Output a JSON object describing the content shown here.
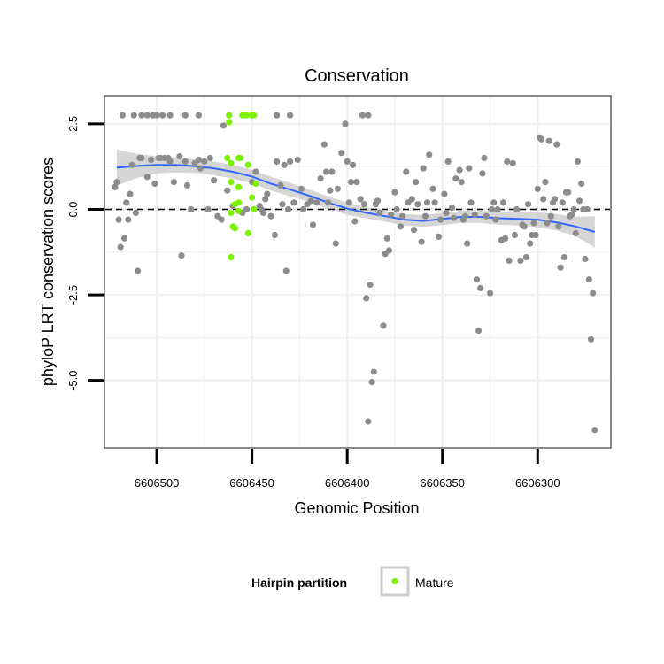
{
  "chart_data": {
    "type": "scatter",
    "title": "Conservation",
    "xlabel": "Genomic Position",
    "ylabel": "phyloP LRT conservation scores",
    "x_reversed": true,
    "xlim": [
      6606262,
      6606527
    ],
    "ylim": [
      -6.95,
      3.3
    ],
    "x_ticks": [
      6606500,
      6606450,
      6606400,
      6606350,
      6606300
    ],
    "x_tick_labels": [
      "6606500",
      "6606450",
      "6606400",
      "6606350",
      "6606300"
    ],
    "y_ticks": [
      2.5,
      0.0,
      -2.5,
      -5.0
    ],
    "y_tick_labels": [
      "2.5",
      "0.0",
      "-2.5",
      "-5.0"
    ],
    "grid": true,
    "reference_line": {
      "y": 0.0,
      "style": "dashed",
      "color": "#000000"
    },
    "legend": {
      "title": "Hairpin partition",
      "position": "bottom",
      "entries": [
        {
          "label": "Mature",
          "color": "#7cf200"
        }
      ]
    },
    "colors": {
      "points": "#8c8c8c",
      "mature": "#7cf200",
      "smooth": "#3366ff",
      "band": "#c8c8c8",
      "frame": "#888888",
      "grid": "#f0f0f0"
    },
    "series": [
      {
        "name": "",
        "color": "#8c8c8c",
        "points": [
          [
            6606518,
            2.75
          ],
          [
            6606512,
            2.75
          ],
          [
            6606508,
            2.75
          ],
          [
            6606505,
            2.75
          ],
          [
            6606502,
            2.75
          ],
          [
            6606500,
            2.75
          ],
          [
            6606497,
            2.75
          ],
          [
            6606493,
            2.75
          ],
          [
            6606485,
            2.75
          ],
          [
            6606478,
            2.75
          ],
          [
            6606462,
            2.75
          ],
          [
            6606437,
            2.75
          ],
          [
            6606430,
            2.75
          ],
          [
            6606392,
            2.75
          ],
          [
            6606389,
            2.75
          ],
          [
            6606522,
            0.65
          ],
          [
            6606521,
            0.8
          ],
          [
            6606520,
            -0.3
          ],
          [
            6606519,
            -1.1
          ],
          [
            6606517,
            -0.85
          ],
          [
            6606516,
            0.2
          ],
          [
            6606515,
            -0.3
          ],
          [
            6606514,
            0.45
          ],
          [
            6606513,
            1.3
          ],
          [
            6606511,
            -0.1
          ],
          [
            6606510,
            -1.8
          ],
          [
            6606509,
            1.5
          ],
          [
            6606508,
            1.5
          ],
          [
            6606505,
            0.95
          ],
          [
            6606503,
            1.45
          ],
          [
            6606501,
            0.75
          ],
          [
            6606499,
            1.5
          ],
          [
            6606498,
            1.5
          ],
          [
            6606496,
            1.5
          ],
          [
            6606494,
            1.5
          ],
          [
            6606493,
            1.4
          ],
          [
            6606491,
            0.8
          ],
          [
            6606488,
            1.55
          ],
          [
            6606487,
            -1.35
          ],
          [
            6606485,
            1.4
          ],
          [
            6606484,
            0.7
          ],
          [
            6606482,
            0.0
          ],
          [
            6606480,
            1.35
          ],
          [
            6606478,
            1.45
          ],
          [
            6606477,
            1.2
          ],
          [
            6606475,
            1.4
          ],
          [
            6606473,
            0.0
          ],
          [
            6606472,
            1.5
          ],
          [
            6606470,
            0.85
          ],
          [
            6606468,
            -0.2
          ],
          [
            6606466,
            -0.3
          ],
          [
            6606465,
            2.45
          ],
          [
            6606463,
            0.55
          ],
          [
            6606460,
            0.1
          ],
          [
            6606455,
            -0.1
          ],
          [
            6606453,
            0.0
          ],
          [
            6606450,
            0.8
          ],
          [
            6606448,
            1.1
          ],
          [
            6606446,
            0.1
          ],
          [
            6606445,
            0.0
          ],
          [
            6606444,
            -0.1
          ],
          [
            6606443,
            0.3
          ],
          [
            6606442,
            0.45
          ],
          [
            6606440,
            -0.2
          ],
          [
            6606438,
            -0.75
          ],
          [
            6606437,
            1.4
          ],
          [
            6606435,
            0.7
          ],
          [
            6606434,
            0.15
          ],
          [
            6606433,
            1.3
          ],
          [
            6606432,
            -1.8
          ],
          [
            6606431,
            0.0
          ],
          [
            6606430,
            1.4
          ],
          [
            6606428,
            0.2
          ],
          [
            6606426,
            1.45
          ],
          [
            6606424,
            0.6
          ],
          [
            6606423,
            0.0
          ],
          [
            6606421,
            0.15
          ],
          [
            6606419,
            0.25
          ],
          [
            6606418,
            -0.45
          ],
          [
            6606416,
            0.2
          ],
          [
            6606414,
            0.9
          ],
          [
            6606412,
            1.9
          ],
          [
            6606411,
            1.1
          ],
          [
            6606410,
            0.2
          ],
          [
            6606409,
            0.55
          ],
          [
            6606408,
            1.1
          ],
          [
            6606406,
            -1.0
          ],
          [
            6606405,
            0.6
          ],
          [
            6606403,
            1.65
          ],
          [
            6606401,
            2.5
          ],
          [
            6606400,
            1.4
          ],
          [
            6606399,
            0.2
          ],
          [
            6606398,
            0.8
          ],
          [
            6606397,
            1.3
          ],
          [
            6606396,
            -0.35
          ],
          [
            6606395,
            0.8
          ],
          [
            6606393,
            0.3
          ],
          [
            6606391,
            0.15
          ],
          [
            6606390,
            -2.6
          ],
          [
            6606389,
            -6.2
          ],
          [
            6606388,
            -2.2
          ],
          [
            6606387,
            -5.05
          ],
          [
            6606386,
            -4.75
          ],
          [
            6606385,
            0.15
          ],
          [
            6606384,
            0.25
          ],
          [
            6606383,
            -0.1
          ],
          [
            6606381,
            -3.4
          ],
          [
            6606380,
            -1.3
          ],
          [
            6606379,
            -0.85
          ],
          [
            6606378,
            -1.2
          ],
          [
            6606377,
            -0.15
          ],
          [
            6606375,
            0.5
          ],
          [
            6606374,
            0.0
          ],
          [
            6606372,
            -0.5
          ],
          [
            6606371,
            -0.2
          ],
          [
            6606369,
            1.1
          ],
          [
            6606368,
            0.2
          ],
          [
            6606366,
            0.3
          ],
          [
            6606365,
            -0.6
          ],
          [
            6606364,
            0.8
          ],
          [
            6606363,
            0.15
          ],
          [
            6606361,
            -0.95
          ],
          [
            6606360,
            1.2
          ],
          [
            6606359,
            -0.2
          ],
          [
            6606358,
            0.2
          ],
          [
            6606357,
            1.6
          ],
          [
            6606355,
            0.6
          ],
          [
            6606354,
            0.2
          ],
          [
            6606352,
            -0.8
          ],
          [
            6606351,
            -0.3
          ],
          [
            6606349,
            0.45
          ],
          [
            6606348,
            -0.1
          ],
          [
            6606347,
            1.4
          ],
          [
            6606345,
            0.05
          ],
          [
            6606344,
            -0.25
          ],
          [
            6606343,
            0.9
          ],
          [
            6606341,
            1.15
          ],
          [
            6606340,
            0.8
          ],
          [
            6606339,
            -0.3
          ],
          [
            6606338,
            -0.2
          ],
          [
            6606337,
            -1.0
          ],
          [
            6606336,
            1.2
          ],
          [
            6606335,
            0.2
          ],
          [
            6606333,
            -0.15
          ],
          [
            6606332,
            -2.05
          ],
          [
            6606331,
            -3.55
          ],
          [
            6606330,
            -2.3
          ],
          [
            6606329,
            1.05
          ],
          [
            6606328,
            1.5
          ],
          [
            6606327,
            -0.2
          ],
          [
            6606325,
            -2.45
          ],
          [
            6606324,
            0.0
          ],
          [
            6606323,
            0.2
          ],
          [
            6606322,
            -0.3
          ],
          [
            6606321,
            0.0
          ],
          [
            6606319,
            -0.9
          ],
          [
            6606318,
            0.2
          ],
          [
            6606317,
            -0.85
          ],
          [
            6606316,
            1.4
          ],
          [
            6606315,
            -1.5
          ],
          [
            6606313,
            1.35
          ],
          [
            6606312,
            -0.75
          ],
          [
            6606311,
            0.0
          ],
          [
            6606309,
            -1.5
          ],
          [
            6606308,
            -0.45
          ],
          [
            6606307,
            -0.5
          ],
          [
            6606306,
            -1.4
          ],
          [
            6606305,
            0.15
          ],
          [
            6606304,
            -1.0
          ],
          [
            6606303,
            -0.75
          ],
          [
            6606302,
            -0.4
          ],
          [
            6606301,
            -0.75
          ],
          [
            6606300,
            0.6
          ],
          [
            6606299,
            2.1
          ],
          [
            6606298,
            2.05
          ],
          [
            6606297,
            0.3
          ],
          [
            6606296,
            0.8
          ],
          [
            6606295,
            -0.4
          ],
          [
            6606294,
            2.0
          ],
          [
            6606293,
            -0.2
          ],
          [
            6606292,
            0.2
          ],
          [
            6606291,
            0.3
          ],
          [
            6606290,
            1.9
          ],
          [
            6606289,
            -0.5
          ],
          [
            6606288,
            -1.7
          ],
          [
            6606287,
            0.2
          ],
          [
            6606286,
            -1.4
          ],
          [
            6606285,
            0.5
          ],
          [
            6606284,
            0.5
          ],
          [
            6606283,
            -0.2
          ],
          [
            6606282,
            -0.15
          ],
          [
            6606281,
            0.0
          ],
          [
            6606280,
            -0.7
          ],
          [
            6606279,
            1.4
          ],
          [
            6606278,
            0.25
          ],
          [
            6606277,
            0.75
          ],
          [
            6606276,
            0.0
          ],
          [
            6606275,
            -1.45
          ],
          [
            6606274,
            0.0
          ],
          [
            6606273,
            -2.05
          ],
          [
            6606272,
            -3.8
          ],
          [
            6606271,
            -2.45
          ],
          [
            6606270,
            -6.45
          ]
        ]
      },
      {
        "name": "Mature",
        "color": "#7cf200",
        "points": [
          [
            6606462,
            2.75
          ],
          [
            6606462,
            2.55
          ],
          [
            6606463,
            1.5
          ],
          [
            6606461,
            1.35
          ],
          [
            6606461,
            0.8
          ],
          [
            6606461,
            -0.1
          ],
          [
            6606461,
            -1.4
          ],
          [
            6606460,
            -0.5
          ],
          [
            6606459,
            -0.55
          ],
          [
            6606459,
            0.15
          ],
          [
            6606457,
            0.65
          ],
          [
            6606457,
            0.2
          ],
          [
            6606457,
            -0.05
          ],
          [
            6606457,
            1.5
          ],
          [
            6606456,
            1.5
          ],
          [
            6606455,
            2.75
          ],
          [
            6606453,
            2.75
          ],
          [
            6606452,
            1.3
          ],
          [
            6606452,
            -0.7
          ],
          [
            6606450,
            2.75
          ],
          [
            6606450,
            0.35
          ],
          [
            6606449,
            2.75
          ],
          [
            6606449,
            0.0
          ],
          [
            6606448,
            0.75
          ]
        ]
      }
    ],
    "smooth": [
      [
        6606521,
        1.22
      ],
      [
        6606510,
        1.27
      ],
      [
        6606500,
        1.3
      ],
      [
        6606490,
        1.3
      ],
      [
        6606480,
        1.26
      ],
      [
        6606470,
        1.2
      ],
      [
        6606460,
        1.1
      ],
      [
        6606450,
        0.96
      ],
      [
        6606440,
        0.75
      ],
      [
        6606430,
        0.58
      ],
      [
        6606420,
        0.4
      ],
      [
        6606410,
        0.2
      ],
      [
        6606400,
        0.02
      ],
      [
        6606390,
        -0.1
      ],
      [
        6606380,
        -0.2
      ],
      [
        6606370,
        -0.3
      ],
      [
        6606360,
        -0.34
      ],
      [
        6606350,
        -0.28
      ],
      [
        6606340,
        -0.22
      ],
      [
        6606330,
        -0.22
      ],
      [
        6606320,
        -0.26
      ],
      [
        6606310,
        -0.28
      ],
      [
        6606300,
        -0.3
      ],
      [
        6606290,
        -0.38
      ],
      [
        6606280,
        -0.5
      ],
      [
        6606270,
        -0.66
      ]
    ],
    "band_upper": [
      [
        6606521,
        1.75
      ],
      [
        6606510,
        1.62
      ],
      [
        6606500,
        1.55
      ],
      [
        6606490,
        1.52
      ],
      [
        6606480,
        1.45
      ],
      [
        6606470,
        1.4
      ],
      [
        6606460,
        1.3
      ],
      [
        6606450,
        1.16
      ],
      [
        6606440,
        0.95
      ],
      [
        6606430,
        0.78
      ],
      [
        6606420,
        0.58
      ],
      [
        6606410,
        0.38
      ],
      [
        6606400,
        0.2
      ],
      [
        6606390,
        0.06
      ],
      [
        6606380,
        -0.04
      ],
      [
        6606370,
        -0.13
      ],
      [
        6606360,
        -0.17
      ],
      [
        6606350,
        -0.1
      ],
      [
        6606340,
        -0.04
      ],
      [
        6606330,
        -0.04
      ],
      [
        6606320,
        -0.07
      ],
      [
        6606310,
        -0.09
      ],
      [
        6606300,
        -0.08
      ],
      [
        6606290,
        -0.14
      ],
      [
        6606280,
        -0.22
      ],
      [
        6606270,
        -0.2
      ]
    ],
    "band_lower": [
      [
        6606521,
        0.69
      ],
      [
        6606510,
        0.92
      ],
      [
        6606500,
        1.05
      ],
      [
        6606490,
        1.08
      ],
      [
        6606480,
        1.07
      ],
      [
        6606470,
        1.0
      ],
      [
        6606460,
        0.9
      ],
      [
        6606450,
        0.76
      ],
      [
        6606440,
        0.55
      ],
      [
        6606430,
        0.38
      ],
      [
        6606420,
        0.22
      ],
      [
        6606410,
        0.02
      ],
      [
        6606400,
        -0.16
      ],
      [
        6606390,
        -0.26
      ],
      [
        6606380,
        -0.36
      ],
      [
        6606370,
        -0.47
      ],
      [
        6606360,
        -0.51
      ],
      [
        6606350,
        -0.46
      ],
      [
        6606340,
        -0.4
      ],
      [
        6606330,
        -0.4
      ],
      [
        6606320,
        -0.45
      ],
      [
        6606310,
        -0.47
      ],
      [
        6606300,
        -0.52
      ],
      [
        6606290,
        -0.62
      ],
      [
        6606280,
        -0.78
      ],
      [
        6606270,
        -1.12
      ]
    ]
  }
}
